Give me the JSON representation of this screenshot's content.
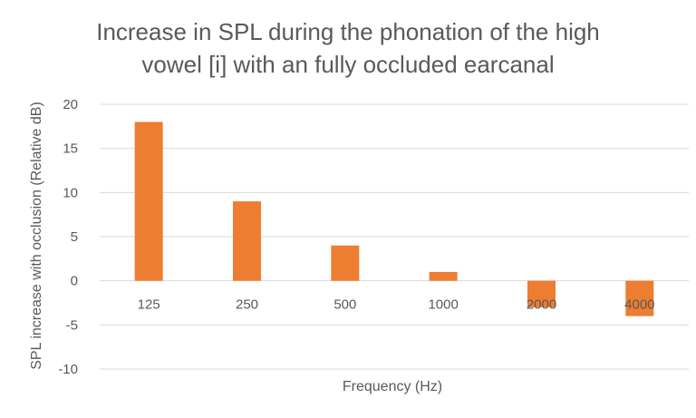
{
  "chart_data": {
    "type": "bar",
    "title_lines": [
      "Increase in SPL during the phonation of the high",
      "vowel [i] with an fully occluded earcanal"
    ],
    "xlabel": "Frequency (Hz)",
    "ylabel": "SPL increase with occlusion (Relative dB)",
    "categories": [
      "125",
      "250",
      "500",
      "1000",
      "2000",
      "4000"
    ],
    "values": [
      18,
      9,
      4,
      1,
      -3,
      -4
    ],
    "ylim": [
      -10,
      20
    ],
    "yticks": [
      "-10",
      "-5",
      "0",
      "5",
      "10",
      "15",
      "20"
    ],
    "grid": true,
    "bar_color": "#ed7d31"
  }
}
